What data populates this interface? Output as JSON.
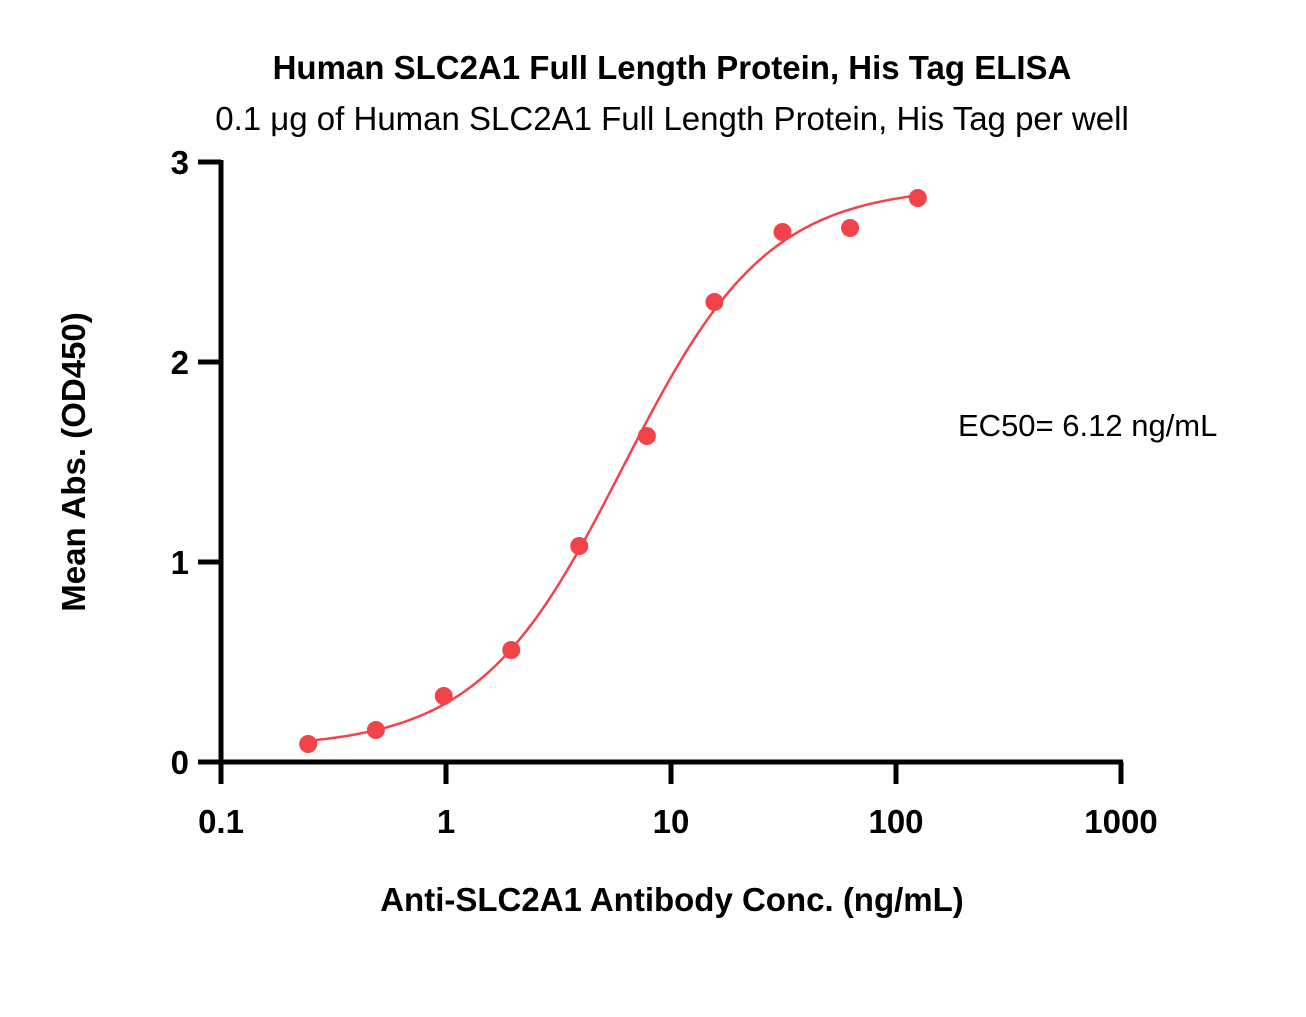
{
  "chart_data": {
    "type": "scatter",
    "title": "Human SLC2A1 Full Length Protein, His Tag ELISA",
    "subtitle": "0.1 μg of Human SLC2A1 Full Length Protein, His Tag per well",
    "xlabel": "Anti-SLC2A1 Antibody Conc. (ng/mL)",
    "ylabel": "Mean Abs. (OD450)",
    "xscale": "log",
    "xlim": [
      0.1,
      1000
    ],
    "ylim": [
      0,
      3
    ],
    "xticks": [
      0.1,
      1,
      10,
      100,
      1000
    ],
    "xtick_labels": [
      "0.1",
      "1",
      "10",
      "100",
      "1000"
    ],
    "yticks": [
      0,
      1,
      2,
      3
    ],
    "ytick_labels": [
      "0",
      "1",
      "2",
      "3"
    ],
    "grid": false,
    "annotation": "EC50= 6.12 ng/mL",
    "color": "#f2424a",
    "series": [
      {
        "x": [
          0.244,
          0.488,
          0.977,
          1.95,
          3.91,
          7.81,
          15.6,
          31.3,
          62.5,
          125
        ],
        "y": [
          0.09,
          0.16,
          0.33,
          0.56,
          1.08,
          1.63,
          2.3,
          2.65,
          2.67,
          2.82
        ]
      }
    ],
    "fit": {
      "model": "4PL",
      "bottom": 0.07,
      "top": 2.88,
      "ec50": 6.12,
      "hill": 1.35
    }
  }
}
